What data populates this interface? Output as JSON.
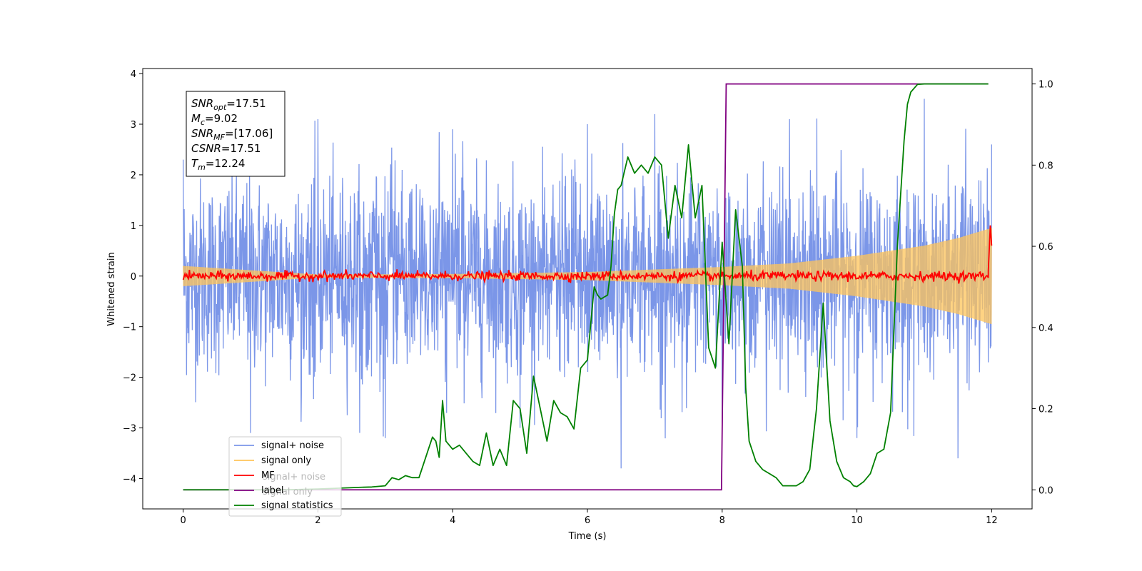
{
  "chart_data": {
    "type": "line",
    "title": "",
    "xlabel": "Time (s)",
    "ylabel": "Whitened strain",
    "xlim": [
      -0.6,
      12.6
    ],
    "ylim": [
      -4.6,
      4.1
    ],
    "y2lim": [
      -0.047,
      1.038
    ],
    "xticks": [
      0,
      2,
      4,
      6,
      8,
      10,
      12
    ],
    "yticks": [
      -4,
      -3,
      -2,
      -1,
      0,
      1,
      2,
      3,
      4
    ],
    "y2ticks": [
      0.0,
      0.2,
      0.4,
      0.6,
      0.8,
      1.0
    ],
    "xtick_labels": [
      "0",
      "2",
      "4",
      "6",
      "8",
      "10",
      "12"
    ],
    "ytick_labels": [
      "−4",
      "−3",
      "−2",
      "−1",
      "0",
      "1",
      "2",
      "3",
      "4"
    ],
    "y2tick_labels": [
      "0.0",
      "0.2",
      "0.4",
      "0.6",
      "0.8",
      "1.0"
    ],
    "annotation_lines": [
      {
        "base": "SNR",
        "sub": "opt",
        "value": "=17.51"
      },
      {
        "base": "M",
        "sub": "c",
        "value": "=9.02"
      },
      {
        "base": "SNR",
        "sub": "MF",
        "value": "=[17.06]"
      },
      {
        "base": "CSNR",
        "sub": "",
        "value": "=17.51"
      },
      {
        "base": "T",
        "sub": "m",
        "value": "=12.24"
      }
    ],
    "legend": {
      "location": "lower-left",
      "entries": [
        {
          "label": "signal+ noise",
          "color": "#7b96e8"
        },
        {
          "label": "signal only",
          "color": "#ffc45a"
        },
        {
          "label": "MF",
          "color": "#ff0000"
        },
        {
          "label": "label",
          "color": "#800080"
        },
        {
          "label": "signal statistics",
          "color": "#008000"
        }
      ],
      "ghost_entries": [
        "signal+ noise",
        "signal only"
      ]
    },
    "series": [
      {
        "name": "signal+ noise",
        "axis": "left",
        "color": "#7b96e8",
        "style": "noise",
        "x_range": [
          0,
          12
        ],
        "sigma": 0.95,
        "envelope": [
          [
            0,
            2.3,
            -2.6
          ],
          [
            1,
            2.9,
            -3.1
          ],
          [
            2,
            3.1,
            -3.0
          ],
          [
            3,
            2.9,
            -3.2
          ],
          [
            4,
            2.9,
            -3.3
          ],
          [
            5,
            3.0,
            -3.0
          ],
          [
            6,
            3.0,
            -3.3
          ],
          [
            6.5,
            3.7,
            -3.8
          ],
          [
            7,
            3.2,
            -4.2
          ],
          [
            8,
            3.3,
            -3.3
          ],
          [
            9,
            3.1,
            -3.0
          ],
          [
            10,
            3.4,
            -3.2
          ],
          [
            11,
            3.5,
            -3.3
          ],
          [
            11.5,
            3.2,
            -3.6
          ],
          [
            12,
            2.6,
            -2.4
          ]
        ]
      },
      {
        "name": "signal only",
        "axis": "left",
        "color": "#ffc45a",
        "style": "chirp",
        "x_range": [
          0,
          12
        ],
        "amplitude": [
          [
            0,
            0.2
          ],
          [
            2,
            0.03
          ],
          [
            4,
            0.04
          ],
          [
            6,
            0.08
          ],
          [
            8,
            0.18
          ],
          [
            9,
            0.25
          ],
          [
            10,
            0.4
          ],
          [
            11,
            0.6
          ],
          [
            11.5,
            0.75
          ],
          [
            12,
            0.95
          ]
        ]
      },
      {
        "name": "MF",
        "axis": "left",
        "color": "#ff0000",
        "style": "jitter",
        "x_range": [
          0,
          12
        ],
        "jitter": 0.045,
        "end_spike": [
          [
            11.95,
            0.1
          ],
          [
            11.98,
            1.0
          ],
          [
            12.0,
            0.6
          ]
        ]
      },
      {
        "name": "label",
        "axis": "right",
        "color": "#800080",
        "x": [
          0,
          7.99,
          8.06,
          11.95
        ],
        "y": [
          0.0,
          0.0,
          1.0,
          1.0
        ]
      },
      {
        "name": "signal statistics",
        "axis": "right",
        "color": "#008000",
        "x": [
          0,
          0.5,
          1.0,
          1.5,
          2.0,
          2.3,
          2.6,
          2.8,
          3.0,
          3.1,
          3.2,
          3.3,
          3.4,
          3.5,
          3.6,
          3.7,
          3.75,
          3.8,
          3.85,
          3.9,
          4.0,
          4.1,
          4.2,
          4.3,
          4.4,
          4.5,
          4.6,
          4.7,
          4.8,
          4.9,
          5.0,
          5.1,
          5.2,
          5.3,
          5.4,
          5.5,
          5.6,
          5.7,
          5.8,
          5.9,
          6.0,
          6.1,
          6.15,
          6.2,
          6.3,
          6.35,
          6.4,
          6.45,
          6.5,
          6.6,
          6.7,
          6.8,
          6.9,
          7.0,
          7.1,
          7.2,
          7.3,
          7.4,
          7.5,
          7.6,
          7.7,
          7.8,
          7.9,
          8.0,
          8.1,
          8.2,
          8.3,
          8.35,
          8.4,
          8.5,
          8.6,
          8.7,
          8.8,
          8.9,
          9.0,
          9.1,
          9.2,
          9.3,
          9.4,
          9.5,
          9.6,
          9.7,
          9.8,
          9.9,
          9.95,
          10.0,
          10.1,
          10.2,
          10.3,
          10.4,
          10.5,
          10.6,
          10.7,
          10.75,
          10.8,
          10.9,
          11.0,
          11.1,
          11.2,
          11.3,
          11.5,
          11.7,
          11.95
        ],
        "y": [
          0.0,
          0.0,
          0.0,
          0.0,
          0.002,
          0.004,
          0.006,
          0.007,
          0.01,
          0.03,
          0.025,
          0.035,
          0.03,
          0.03,
          0.08,
          0.13,
          0.12,
          0.08,
          0.22,
          0.12,
          0.1,
          0.11,
          0.09,
          0.07,
          0.06,
          0.14,
          0.06,
          0.1,
          0.06,
          0.22,
          0.2,
          0.09,
          0.28,
          0.2,
          0.12,
          0.22,
          0.19,
          0.18,
          0.15,
          0.3,
          0.32,
          0.5,
          0.48,
          0.47,
          0.48,
          0.55,
          0.68,
          0.74,
          0.75,
          0.82,
          0.78,
          0.8,
          0.78,
          0.82,
          0.8,
          0.62,
          0.75,
          0.67,
          0.85,
          0.67,
          0.75,
          0.35,
          0.3,
          0.61,
          0.36,
          0.69,
          0.55,
          0.25,
          0.12,
          0.07,
          0.05,
          0.04,
          0.03,
          0.01,
          0.01,
          0.01,
          0.02,
          0.05,
          0.2,
          0.46,
          0.17,
          0.07,
          0.03,
          0.02,
          0.01,
          0.008,
          0.02,
          0.04,
          0.09,
          0.1,
          0.19,
          0.6,
          0.86,
          0.95,
          0.98,
          0.999,
          1.0,
          1.0,
          1.0,
          1.0,
          1.0,
          1.0,
          1.0
        ]
      }
    ]
  }
}
